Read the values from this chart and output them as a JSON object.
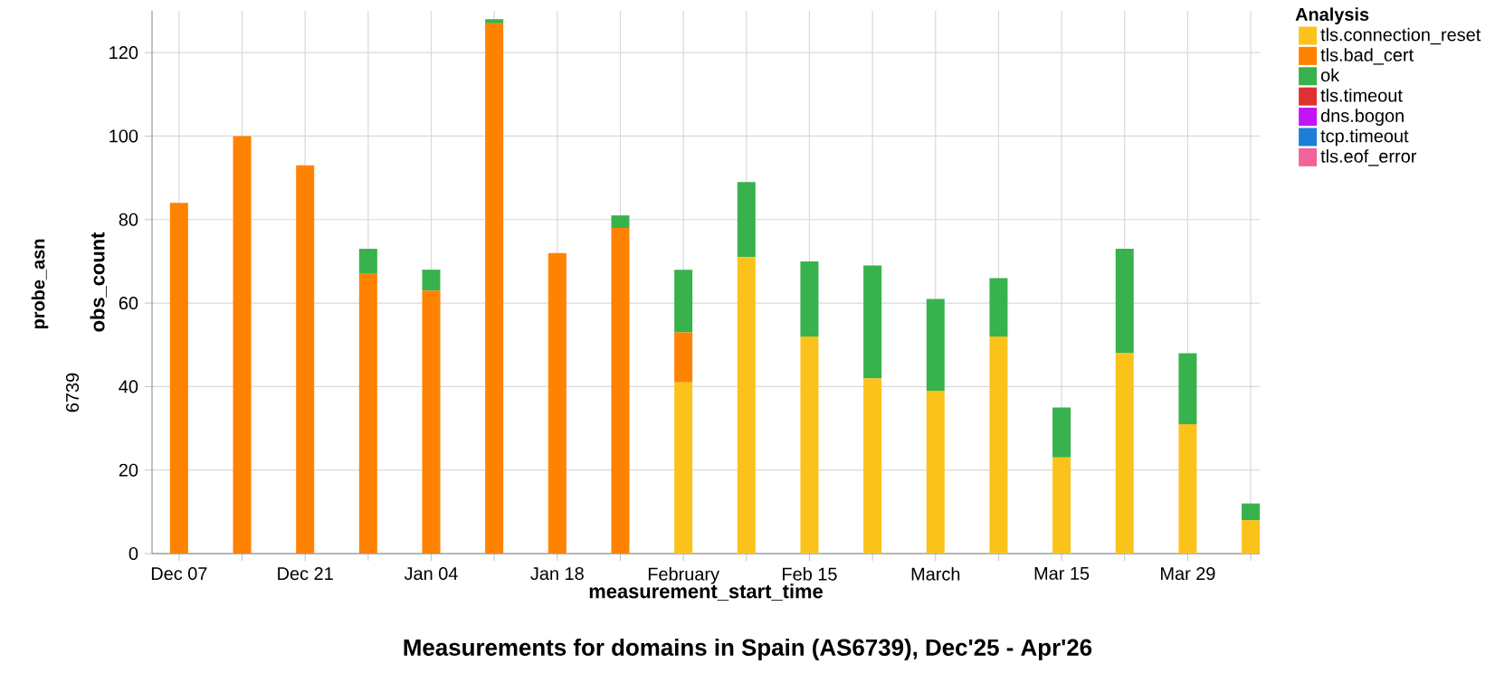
{
  "chart_data": {
    "type": "bar",
    "title": "Measurements for domains in Spain (AS6739), Dec'25 - Apr'26",
    "xlabel": "measurement_start_time",
    "ylabel": "obs_count",
    "legend_title": "Analysis",
    "annotations": [
      "probe_asn",
      "6739"
    ],
    "x": [
      "2025-12-07",
      "2025-12-14",
      "2025-12-21",
      "2025-12-28",
      "2026-01-04",
      "2026-01-11",
      "2026-01-18",
      "2026-01-25",
      "2026-02-01",
      "2026-02-08",
      "2026-02-15",
      "2026-02-22",
      "2026-03-01",
      "2026-03-08",
      "2026-03-15",
      "2026-03-22",
      "2026-03-29",
      "2026-04-05"
    ],
    "stacked": true,
    "series": [
      {
        "name": "tls.connection_reset",
        "color": "#fcc21c",
        "values": [
          0,
          0,
          0,
          0,
          0,
          0,
          0,
          0,
          41,
          71,
          52,
          42,
          39,
          52,
          23,
          48,
          31,
          8
        ]
      },
      {
        "name": "tls.bad_cert",
        "color": "#ff8200",
        "values": [
          84,
          100,
          93,
          67,
          63,
          127,
          72,
          78,
          12,
          0,
          0,
          0,
          0,
          0,
          0,
          0,
          0,
          0
        ]
      },
      {
        "name": "ok",
        "color": "#38b24c",
        "values": [
          0,
          0,
          0,
          6,
          5,
          1,
          0,
          3,
          15,
          18,
          18,
          27,
          22,
          14,
          12,
          25,
          17,
          4
        ]
      },
      {
        "name": "tls.timeout",
        "color": "#e03131",
        "values": [
          null,
          null,
          null,
          null,
          null,
          null,
          null,
          null,
          null,
          null,
          null,
          null,
          null,
          null,
          null,
          null,
          null,
          null
        ]
      },
      {
        "name": "dns.bogon",
        "color": "#c314f5",
        "values": [
          null,
          null,
          null,
          null,
          null,
          null,
          null,
          null,
          null,
          null,
          null,
          null,
          null,
          null,
          null,
          null,
          null,
          null
        ]
      },
      {
        "name": "tcp.timeout",
        "color": "#1c7ed6",
        "values": [
          null,
          null,
          null,
          null,
          null,
          null,
          null,
          null,
          null,
          null,
          null,
          null,
          null,
          null,
          null,
          null,
          null,
          null
        ]
      },
      {
        "name": "tls.eof_error",
        "color": "#f0649a",
        "values": [
          null,
          null,
          null,
          null,
          null,
          null,
          null,
          null,
          null,
          null,
          null,
          null,
          null,
          null,
          null,
          null,
          null,
          null
        ]
      }
    ],
    "xlim": [
      "2025-12-04",
      "2026-04-06"
    ],
    "xticks": [
      {
        "value": "2025-12-07",
        "label": "Dec 07"
      },
      {
        "value": "2025-12-14",
        "label": null
      },
      {
        "value": "2025-12-21",
        "label": "Dec 21"
      },
      {
        "value": "2025-12-28",
        "label": null
      },
      {
        "value": "2026-01-04",
        "label": "Jan 04"
      },
      {
        "value": "2026-01-11",
        "label": null
      },
      {
        "value": "2026-01-18",
        "label": "Jan 18"
      },
      {
        "value": "2026-01-25",
        "label": null
      },
      {
        "value": "2026-02-01",
        "label": "February"
      },
      {
        "value": "2026-02-08",
        "label": null
      },
      {
        "value": "2026-02-15",
        "label": "Feb 15"
      },
      {
        "value": "2026-02-22",
        "label": null
      },
      {
        "value": "2026-03-01",
        "label": "March"
      },
      {
        "value": "2026-03-08",
        "label": null
      },
      {
        "value": "2026-03-15",
        "label": "Mar 15"
      },
      {
        "value": "2026-03-22",
        "label": null
      },
      {
        "value": "2026-03-29",
        "label": "Mar 29"
      },
      {
        "value": "2026-04-05",
        "label": null
      }
    ],
    "ylim": [
      0,
      130
    ],
    "yticks": [
      0,
      20,
      40,
      60,
      80,
      100,
      120
    ],
    "grid": true,
    "legend": "right"
  }
}
